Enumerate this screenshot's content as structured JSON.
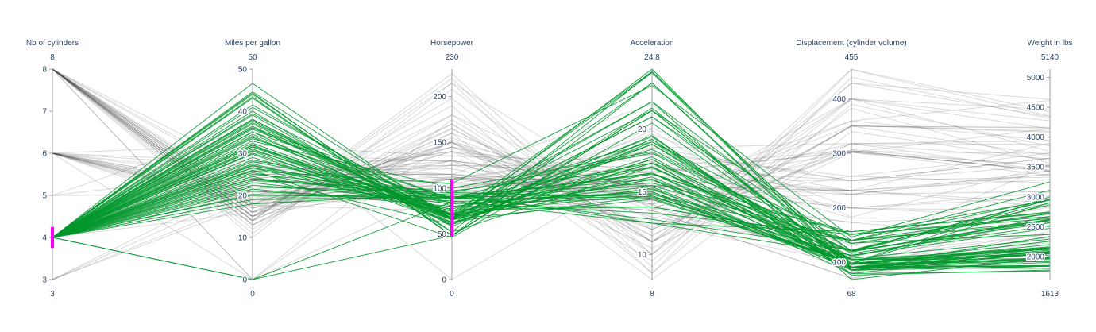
{
  "chart_data": {
    "type": "parcoords",
    "title": "",
    "colors": {
      "selected": "#00962b",
      "unselected": "#444444",
      "brush": "#ff00ff",
      "axis_text": "#2a3f5f"
    },
    "dimensions": [
      {
        "label": "Nb of cylinders",
        "range": [
          3,
          8
        ],
        "range_labels": [
          "3",
          "8"
        ],
        "ticks": [
          3,
          4,
          5,
          6,
          7,
          8
        ],
        "constraint": [
          3.75,
          4.25
        ]
      },
      {
        "label": "Miles per gallon",
        "range": [
          0,
          50
        ],
        "range_labels": [
          "0",
          "50"
        ],
        "ticks": [
          0,
          10,
          20,
          30,
          40,
          50
        ]
      },
      {
        "label": "Horsepower",
        "range": [
          0,
          230
        ],
        "range_labels": [
          "0",
          "230"
        ],
        "ticks": [
          0,
          50,
          100,
          150,
          200
        ],
        "constraint": [
          47,
          110
        ]
      },
      {
        "label": "Acceleration",
        "range": [
          8,
          24.8
        ],
        "range_labels": [
          "8",
          "24.8"
        ],
        "ticks": [
          10,
          15,
          20
        ]
      },
      {
        "label": "Displacement (cylinder volume)",
        "range": [
          68,
          455
        ],
        "range_labels": [
          "68",
          "455"
        ],
        "ticks": [
          100,
          200,
          300,
          400
        ]
      },
      {
        "label": "Weight in lbs",
        "range": [
          1613,
          5140
        ],
        "range_labels": [
          "1613",
          "5140"
        ],
        "ticks": [
          2000,
          2500,
          3000,
          3500,
          4000,
          4500,
          5000
        ]
      }
    ],
    "records_selected": [
      [
        4,
        46.6,
        65,
        24.8,
        86,
        2110
      ],
      [
        4,
        44.6,
        67,
        24.5,
        91,
        1850
      ],
      [
        4,
        44.3,
        48,
        21.7,
        90,
        2085
      ],
      [
        4,
        44,
        52,
        24.6,
        97,
        2130
      ],
      [
        4,
        43.4,
        48,
        23.7,
        90,
        2335
      ],
      [
        4,
        43.1,
        48,
        21.5,
        90,
        1985
      ],
      [
        4,
        41.5,
        67,
        21,
        98,
        2144
      ],
      [
        4,
        40.9,
        70,
        16,
        85,
        1835
      ],
      [
        4,
        39.4,
        70,
        19.4,
        85,
        2070
      ],
      [
        4,
        39.1,
        58,
        19.2,
        79,
        1755
      ],
      [
        4,
        38.1,
        60,
        18.8,
        89,
        1800
      ],
      [
        4,
        38,
        67,
        17.6,
        105,
        1965
      ],
      [
        4,
        37.7,
        62,
        17.3,
        89,
        2050
      ],
      [
        4,
        37.3,
        69,
        15.3,
        91,
        2130
      ],
      [
        4,
        37,
        65,
        19.2,
        91,
        1975
      ],
      [
        4,
        36.4,
        67,
        21,
        121,
        2950
      ],
      [
        4,
        36.1,
        66,
        14.4,
        98,
        1800
      ],
      [
        4,
        36,
        88,
        19,
        135,
        2370
      ],
      [
        4,
        35.7,
        80,
        15.4,
        98,
        1915
      ],
      [
        4,
        35,
        88,
        16.5,
        105,
        2022
      ],
      [
        4,
        34.5,
        70,
        18.8,
        105,
        2150
      ],
      [
        4,
        34.1,
        65,
        17.3,
        86,
        1975
      ],
      [
        4,
        33.8,
        67,
        16.2,
        97,
        2145
      ],
      [
        4,
        33.5,
        83,
        14.5,
        98,
        2075
      ],
      [
        4,
        32.9,
        100,
        18.2,
        119,
        2615
      ],
      [
        4,
        32.4,
        72,
        17,
        107,
        2290
      ],
      [
        4,
        32,
        65,
        16.5,
        91,
        1836
      ],
      [
        4,
        31.9,
        71,
        14.9,
        89,
        1925
      ],
      [
        4,
        31.5,
        68,
        17.8,
        89,
        2045
      ],
      [
        4,
        31,
        67,
        19.5,
        76,
        1773
      ],
      [
        4,
        30.5,
        63,
        14.7,
        98,
        2051
      ],
      [
        4,
        30,
        70,
        16,
        79,
        2074
      ],
      [
        4,
        29.8,
        62,
        17.6,
        89,
        1845
      ],
      [
        4,
        29,
        70,
        22.2,
        68,
        1985
      ],
      [
        4,
        28.4,
        90,
        16.4,
        151,
        2670
      ],
      [
        4,
        28,
        88,
        14.6,
        112,
        2605
      ],
      [
        4,
        27.5,
        75,
        15.2,
        104,
        2120
      ],
      [
        4,
        27,
        88,
        15.5,
        140,
        2720
      ],
      [
        4,
        26.6,
        84,
        13.3,
        151,
        2635
      ],
      [
        4,
        26,
        46,
        20.5,
        97,
        1950
      ],
      [
        4,
        25.4,
        77,
        18.4,
        116,
        2515
      ],
      [
        4,
        25,
        95,
        18.1,
        110,
        2670
      ],
      [
        4,
        24.5,
        60,
        19,
        98,
        2164
      ],
      [
        4,
        24,
        92,
        16,
        120,
        2865
      ],
      [
        4,
        23.5,
        97,
        16.9,
        121,
        2565
      ],
      [
        4,
        23,
        83,
        15,
        97,
        2254
      ],
      [
        4,
        22.4,
        88,
        17.3,
        151,
        2945
      ],
      [
        4,
        22,
        95,
        14.6,
        120,
        2625
      ],
      [
        4,
        21.5,
        80,
        13.8,
        140,
        2600
      ],
      [
        4,
        21,
        86,
        12.5,
        113,
        2472
      ],
      [
        4,
        20.2,
        88,
        16.5,
        134,
        2720
      ],
      [
        4,
        20,
        91,
        12.8,
        122,
        2900
      ],
      [
        4,
        19,
        90,
        14.8,
        140,
        3110
      ],
      [
        4,
        18,
        94,
        12.5,
        156,
        2745
      ],
      [
        4,
        26.5,
        72,
        21.5,
        140,
        2565
      ],
      [
        4,
        30.7,
        76,
        13.8,
        140,
        2960
      ],
      [
        4,
        23.9,
        90,
        15.7,
        156,
        2735
      ],
      [
        4,
        27.2,
        71,
        24.6,
        98,
        3000
      ],
      [
        4,
        31.6,
        74,
        22.2,
        120,
        2950
      ],
      [
        4,
        25.8,
        105,
        23.5,
        146,
        3250
      ],
      [
        4,
        0,
        48,
        21.5,
        90,
        2085
      ],
      [
        4,
        0,
        85,
        15,
        97,
        2900
      ],
      [
        4,
        40,
        52,
        17,
        95,
        2200
      ],
      [
        4,
        35.1,
        60,
        23.7,
        85,
        1900
      ]
    ],
    "records_unselected": [
      [
        8,
        18,
        130,
        12,
        307,
        3504
      ],
      [
        8,
        15,
        165,
        11.5,
        350,
        3693
      ],
      [
        8,
        18,
        150,
        11,
        318,
        3436
      ],
      [
        8,
        16,
        150,
        12,
        304,
        3433
      ],
      [
        8,
        17,
        140,
        10.5,
        302,
        3449
      ],
      [
        8,
        15,
        198,
        10,
        429,
        4341
      ],
      [
        8,
        14,
        220,
        9,
        454,
        4354
      ],
      [
        8,
        14,
        215,
        8.5,
        440,
        4312
      ],
      [
        8,
        14,
        225,
        10,
        455,
        4425
      ],
      [
        8,
        15,
        190,
        8.5,
        390,
        3850
      ],
      [
        8,
        15,
        170,
        10,
        383,
        3563
      ],
      [
        8,
        14,
        160,
        8,
        340,
        3609
      ],
      [
        8,
        13,
        150,
        9.5,
        400,
        3761
      ],
      [
        8,
        12,
        180,
        11,
        400,
        4464
      ],
      [
        8,
        13,
        170,
        11,
        350,
        4165
      ],
      [
        8,
        11,
        208,
        11,
        429,
        4633
      ],
      [
        8,
        16,
        155,
        13.5,
        400,
        4140
      ],
      [
        8,
        17,
        145,
        14,
        351,
        4082
      ],
      [
        8,
        18,
        150,
        12.8,
        318,
        3940
      ],
      [
        8,
        10,
        215,
        14,
        360,
        4615
      ],
      [
        8,
        13,
        165,
        12,
        400,
        4274
      ],
      [
        8,
        19,
        125,
        17,
        305,
        3425
      ],
      [
        8,
        20,
        130,
        15.4,
        302,
        3525
      ],
      [
        8,
        15,
        110,
        18.5,
        318,
        3632
      ],
      [
        8,
        16,
        140,
        14,
        302,
        4140
      ],
      [
        8,
        24,
        130,
        15,
        360,
        3940
      ],
      [
        8,
        0,
        175,
        11,
        351,
        4100
      ],
      [
        8,
        0,
        153,
        11.5,
        350,
        4154
      ],
      [
        8,
        26,
        125,
        16.5,
        304,
        3725
      ],
      [
        8,
        19.2,
        145,
        12.2,
        305,
        3425
      ],
      [
        8,
        23,
        140,
        16.6,
        302,
        3360
      ],
      [
        8,
        17.5,
        145,
        15.1,
        318,
        3880
      ],
      [
        6,
        22,
        95,
        15.5,
        225,
        3086
      ],
      [
        6,
        18,
        97,
        15.5,
        199,
        2774
      ],
      [
        6,
        21,
        100,
        16,
        250,
        3329
      ],
      [
        6,
        19,
        105,
        15.5,
        232,
        3288
      ],
      [
        6,
        16,
        100,
        18,
        258,
        3233
      ],
      [
        6,
        17,
        110,
        16.9,
        250,
        3520
      ],
      [
        6,
        18,
        105,
        18,
        231,
        3380
      ],
      [
        6,
        20,
        100,
        17,
        225,
        3430
      ],
      [
        6,
        18.5,
        110,
        18.2,
        250,
        3645
      ],
      [
        6,
        19.8,
        85,
        19.6,
        200,
        2990
      ],
      [
        6,
        22,
        110,
        16,
        232,
        2835
      ],
      [
        6,
        25,
        115,
        15.5,
        200,
        2648
      ],
      [
        6,
        20.8,
        85,
        16.4,
        200,
        3070
      ],
      [
        6,
        17.7,
        75,
        18.5,
        250,
        3650
      ],
      [
        6,
        24,
        125,
        14.5,
        173,
        2300
      ],
      [
        6,
        28,
        130,
        15.5,
        231,
        3090
      ],
      [
        6,
        26.8,
        115,
        14.8,
        173,
        2700
      ],
      [
        6,
        19.1,
        92,
        14.3,
        225,
        3381
      ],
      [
        6,
        0,
        100,
        16.6,
        232,
        2900
      ],
      [
        6,
        15,
        150,
        15,
        232,
        3900
      ],
      [
        6,
        32,
        135,
        17.4,
        181,
        2650
      ],
      [
        6,
        14,
        160,
        13.8,
        258,
        3730
      ],
      [
        3,
        18,
        90,
        13.5,
        70,
        2330
      ],
      [
        3,
        21.5,
        110,
        15,
        80,
        2720
      ],
      [
        3,
        23.7,
        100,
        16,
        80,
        2420
      ],
      [
        3,
        19,
        97,
        13.5,
        70,
        2270
      ],
      [
        5,
        20.3,
        103,
        15.9,
        131,
        2830
      ],
      [
        5,
        25.4,
        77,
        20.1,
        183,
        3530
      ],
      [
        5,
        36.4,
        67,
        19.9,
        121,
        2950
      ],
      [
        4,
        24,
        95,
        13.5,
        113,
        2372
      ],
      [
        4,
        27,
        113,
        12.5,
        97,
        2130
      ],
      [
        4,
        26,
        121,
        14,
        104,
        2375
      ],
      [
        4,
        25,
        115,
        14.5,
        104,
        2228
      ],
      [
        4,
        23,
        112,
        15.5,
        120,
        2868
      ],
      [
        4,
        28,
        110,
        14.7,
        97,
        2640
      ],
      [
        4,
        30,
        129,
        13,
        121,
        2945
      ],
      [
        4,
        19,
        112,
        14.8,
        122,
        3030
      ],
      [
        4,
        16,
        180,
        13.7,
        120,
        2600
      ],
      [
        4,
        38,
        0,
        17.4,
        98,
        2100
      ],
      [
        4,
        24.5,
        140,
        15,
        90,
        2770
      ],
      [
        4,
        28,
        115,
        22,
        116,
        3550
      ]
    ]
  }
}
